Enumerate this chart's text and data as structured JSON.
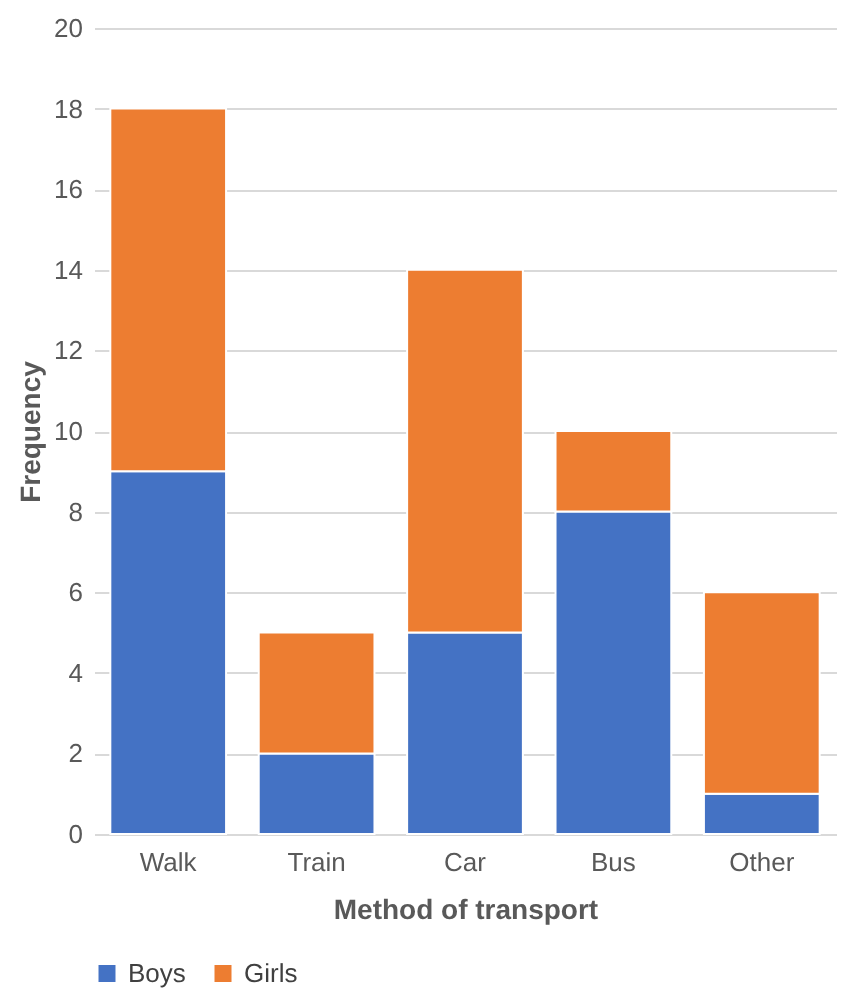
{
  "chart_data": {
    "type": "bar",
    "stacked": true,
    "xlabel": "Method of transport",
    "ylabel": "Frequency",
    "categories": [
      "Walk",
      "Train",
      "Car",
      "Bus",
      "Other"
    ],
    "series": [
      {
        "name": "Boys",
        "color": "#4472c4",
        "values": [
          9,
          2,
          5,
          8,
          1
        ]
      },
      {
        "name": "Girls",
        "color": "#ed7d31",
        "values": [
          9,
          3,
          9,
          2,
          5
        ]
      }
    ],
    "ylim": [
      0,
      20
    ],
    "yticks": [
      0,
      2,
      4,
      6,
      8,
      10,
      12,
      14,
      16,
      18,
      20
    ],
    "grid": "y",
    "legend": "bottom"
  }
}
